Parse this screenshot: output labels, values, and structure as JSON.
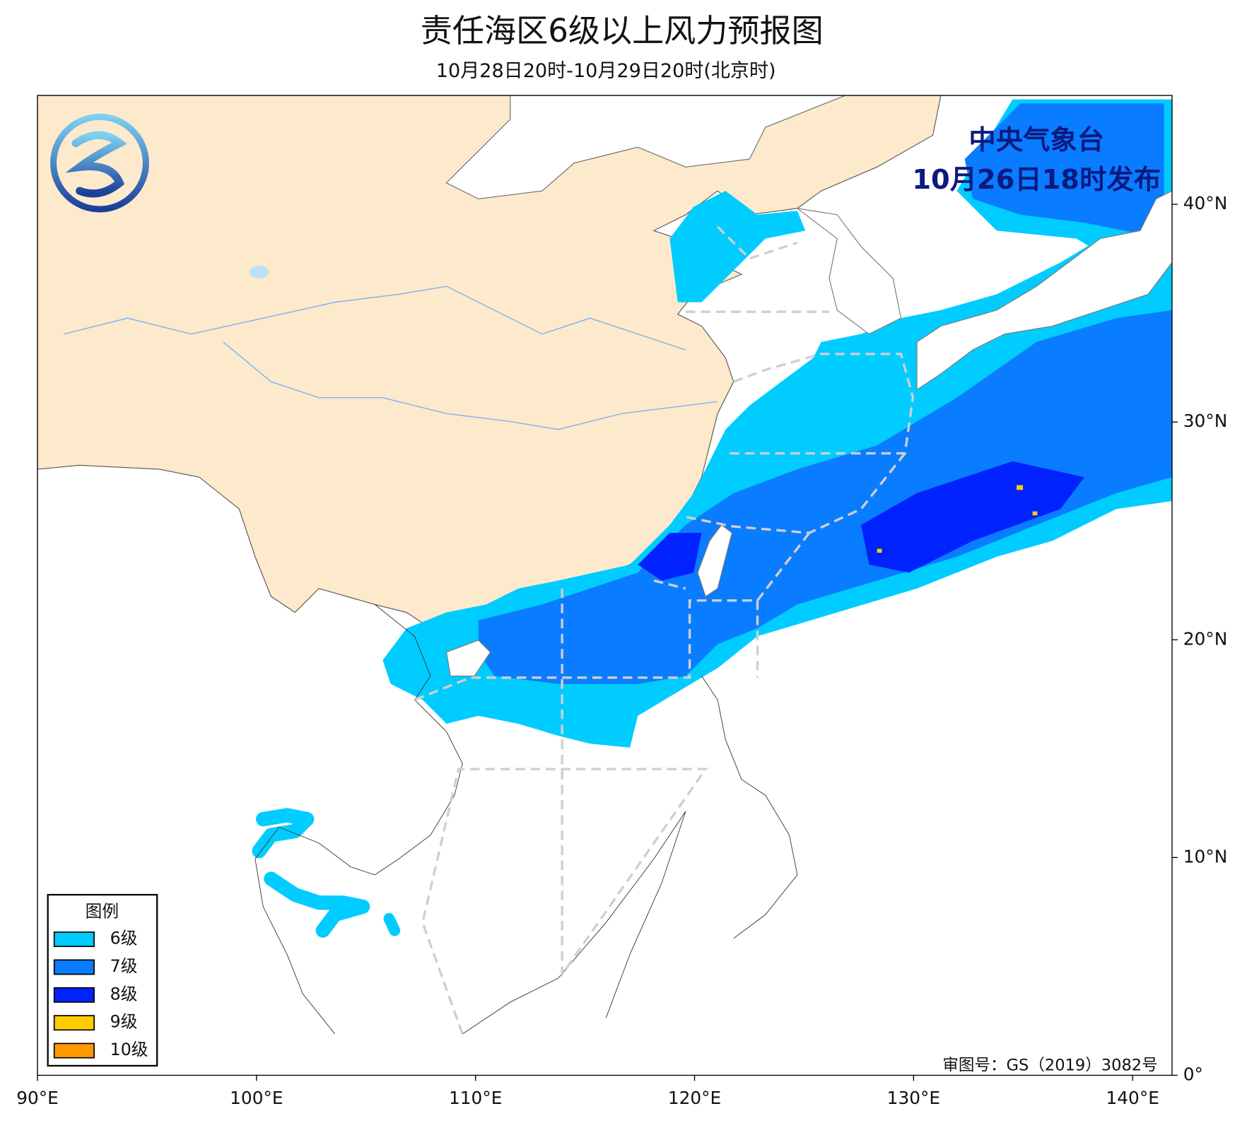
{
  "title": "责任海区6级以上风力预报图",
  "subtitle": "10月28日20时-10月29日20时(北京时)",
  "issuer": "中央气象台",
  "issued_at": "10月26日18时发布",
  "review_number": "审图号：GS（2019）3082号",
  "legend": {
    "title": "图例",
    "items": [
      {
        "label": "6级",
        "color": "#00ccff"
      },
      {
        "label": "7级",
        "color": "#0a7cff"
      },
      {
        "label": "8级",
        "color": "#0022ff"
      },
      {
        "label": "9级",
        "color": "#ffcc00"
      },
      {
        "label": "10级",
        "color": "#ff9900"
      }
    ]
  },
  "axes": {
    "xlim": [
      90,
      141.8
    ],
    "ylim": [
      0,
      45
    ],
    "xticks": [
      {
        "value": 90,
        "label": "90°E"
      },
      {
        "value": 100,
        "label": "100°E"
      },
      {
        "value": 110,
        "label": "110°E"
      },
      {
        "value": 120,
        "label": "120°E"
      },
      {
        "value": 130,
        "label": "130°E"
      },
      {
        "value": 140,
        "label": "140°E"
      }
    ],
    "yticks": [
      {
        "value": 0,
        "label": "0°"
      },
      {
        "value": 10,
        "label": "10°N"
      },
      {
        "value": 20,
        "label": "20°N"
      },
      {
        "value": 30,
        "label": "30°N"
      },
      {
        "value": 40,
        "label": "40°N"
      }
    ]
  }
}
